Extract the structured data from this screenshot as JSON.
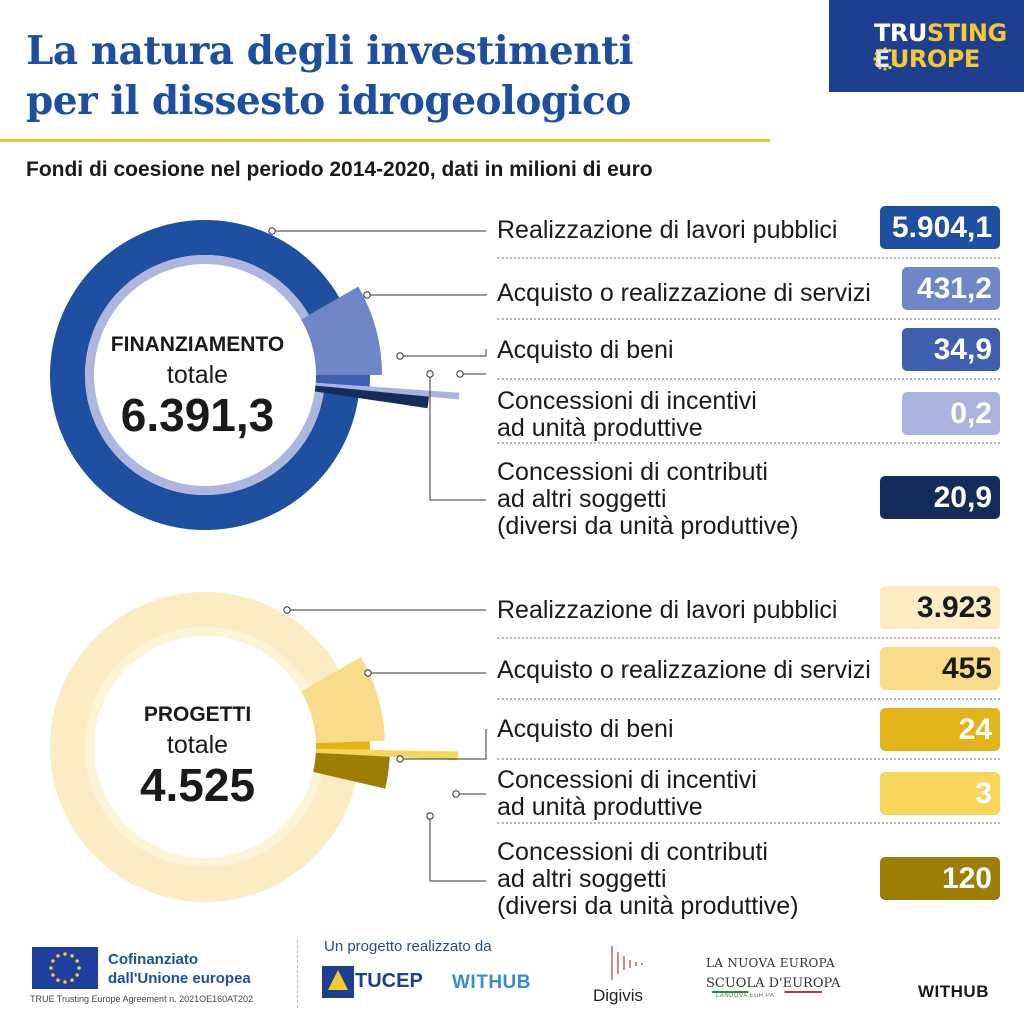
{
  "header": {
    "title_line1": "La natura degli investimenti",
    "title_line2": "per il dissesto idrogeologico",
    "subtitle": "Fondi di coesione nel periodo 2014-2020, dati in milioni di euro",
    "brand_line1_a": "TRU",
    "brand_line1_b": "STING",
    "brand_line2_a": "E",
    "brand_line2_b": "UROPE"
  },
  "chart_data": [
    {
      "type": "pie",
      "center_title": "FINANZIAMENTO",
      "center_sub": "totale",
      "center_total": "6.391,3",
      "total": 6391.3,
      "categories": [
        "Realizzazione di lavori pubblici",
        "Acquisto o realizzazione di servizi",
        "Acquisto di beni",
        "Concessioni di incentivi ad unità produttive",
        "Concessioni di contributi ad altri soggetti (diversi da unità produttive)"
      ],
      "values": [
        5904.1,
        431.2,
        34.9,
        0.2,
        20.9
      ],
      "value_labels": [
        "5.904,1",
        "431,2",
        "34,9",
        "0,2",
        "20,9"
      ],
      "colors": [
        "#1f4fa0",
        "#6f87c9",
        "#3e5fae",
        "#a9b3de",
        "#142c5c"
      ],
      "text_colors": [
        "#ffffff",
        "#ffffff",
        "#ffffff",
        "#ffffff",
        "#ffffff"
      ]
    },
    {
      "type": "pie",
      "center_title": "PROGETTI",
      "center_sub": "totale",
      "center_total": "4.525",
      "total": 4525,
      "categories": [
        "Realizzazione di lavori pubblici",
        "Acquisto o realizzazione di servizi",
        "Acquisto di beni",
        "Concessioni di incentivi ad unità produttive",
        "Concessioni di contributi ad altri soggetti (diversi da unità produttive)"
      ],
      "values": [
        3923,
        455,
        24,
        3,
        120
      ],
      "value_labels": [
        "3.923",
        "455",
        "24",
        "3",
        "120"
      ],
      "colors": [
        "#fbecc4",
        "#f9dc8a",
        "#e2b41a",
        "#f7d659",
        "#9e7d06"
      ],
      "text_colors": [
        "#1a1a1a",
        "#1a1a1a",
        "#ffffff",
        "#ffffff",
        "#ffffff"
      ]
    }
  ],
  "rows": [
    {
      "lines": [
        [
          "Realizzazione di lavori pubblici"
        ],
        [
          "Acquisto o realizzazione di servizi"
        ],
        [
          "Acquisto di beni"
        ],
        [
          "Concessioni di incentivi",
          "ad unità produttive"
        ],
        [
          "Concessioni di contributi",
          "ad altri soggetti",
          "(diversi da unità produttive)"
        ]
      ]
    },
    {
      "lines": [
        [
          "Realizzazione di lavori pubblici"
        ],
        [
          "Acquisto o realizzazione di servizi"
        ],
        [
          "Acquisto di beni"
        ],
        [
          "Concessioni di incentivi",
          "ad unità produttive"
        ],
        [
          "Concessioni di contributi",
          "ad altri soggetti",
          "(diversi da unità produttive)"
        ]
      ]
    }
  ],
  "footer": {
    "eu_line1": "Cofinanziato",
    "eu_line2": "dall'Unione europea",
    "agreement": "TRUE Trusting Europe Agreement n. 2021OE160AT202",
    "project_by": "Un progetto realizzato da",
    "tucep": "TUCEP",
    "withub": "WITHUB",
    "digivis": "Digivis",
    "nuova_europa": "LA NUOVA EUROPA",
    "scuola": "SCUOLA D'EUROPA",
    "landover": "LANDOVA EUR PA",
    "withub_right": "WITHUB"
  }
}
